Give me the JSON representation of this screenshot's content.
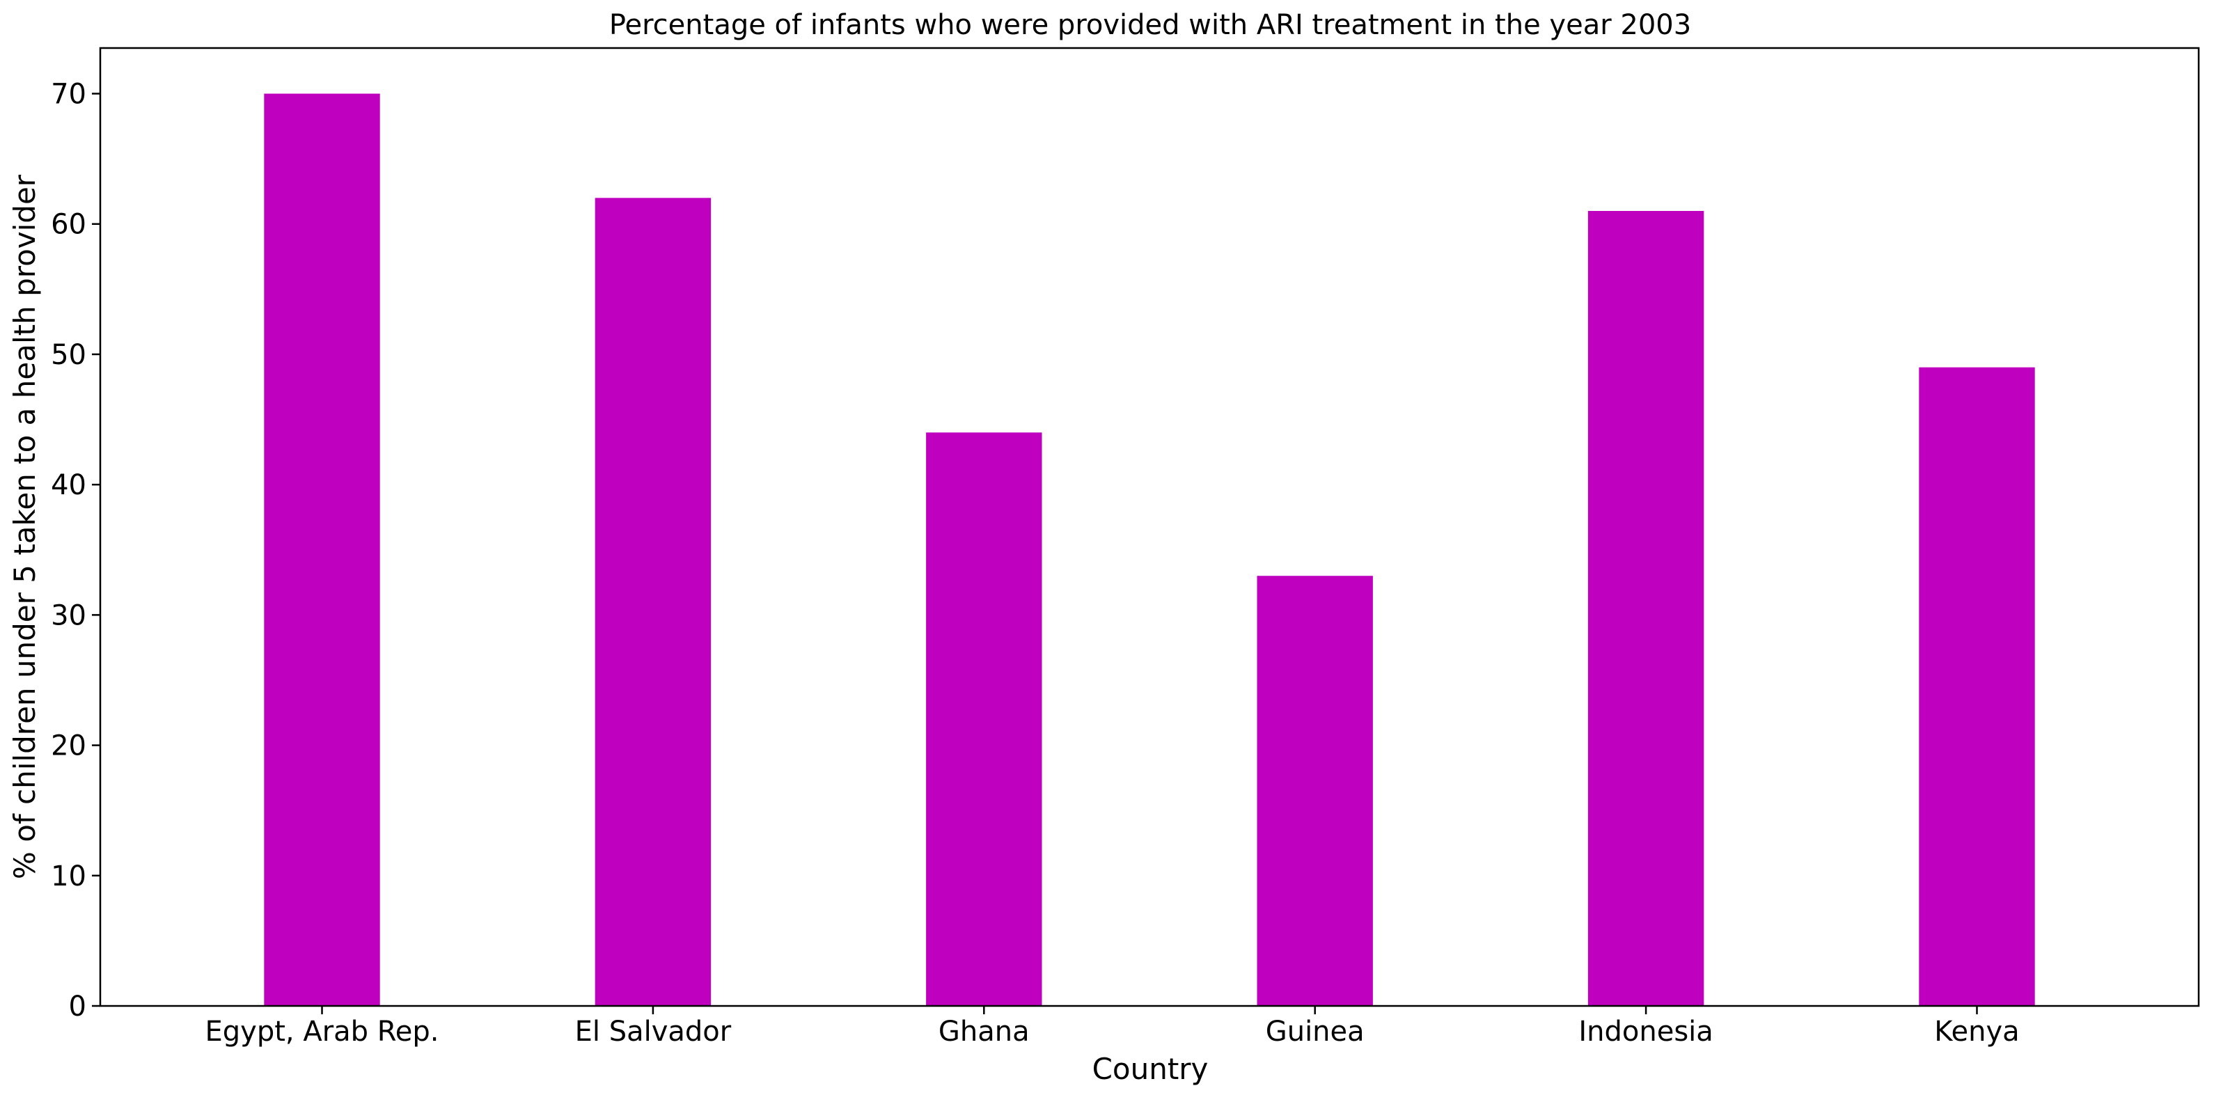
{
  "chart_data": {
    "type": "bar",
    "title": "Percentage of infants who were provided with ARI treatment in the year 2003",
    "xlabel": "Country",
    "ylabel": "% of children under 5 taken to a health provider",
    "categories": [
      "Egypt, Arab Rep.",
      "El Salvador",
      "Ghana",
      "Guinea",
      "Indonesia",
      "Kenya"
    ],
    "values": [
      70,
      62,
      44,
      33,
      61,
      49
    ],
    "ylim": [
      0,
      73.5
    ],
    "yticks": [
      "0",
      "10",
      "20",
      "30",
      "40",
      "50",
      "60",
      "70"
    ],
    "bar_color": "#bf00bf",
    "grid": false,
    "legend": "none"
  }
}
